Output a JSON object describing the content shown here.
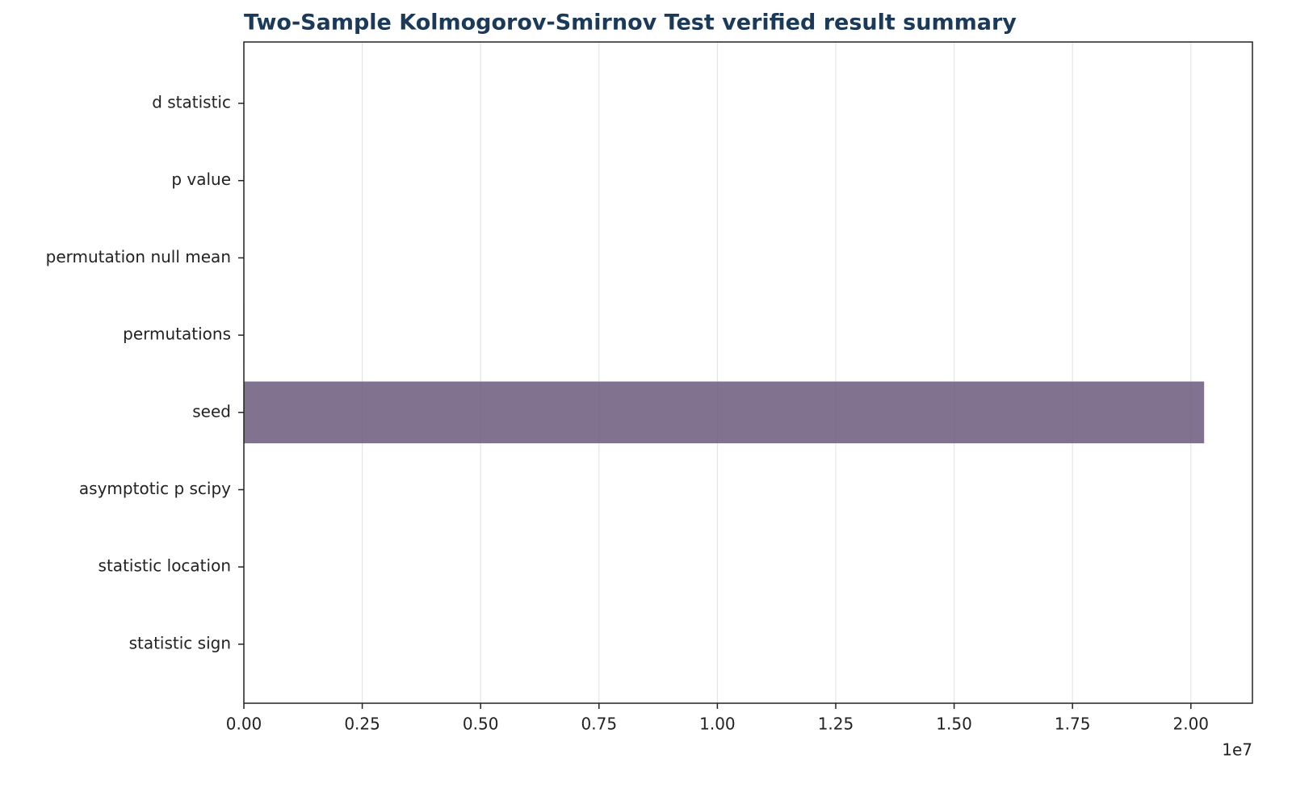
{
  "chart_data": {
    "type": "hbar",
    "title": "Two-Sample Kolmogorov-Smirnov Test verified result summary",
    "categories": [
      "d statistic",
      "p value",
      "permutation null mean",
      "permutations",
      "seed",
      "asymptotic p scipy",
      "statistic location",
      "statistic sign"
    ],
    "values": [
      0.3,
      0.01,
      0.15,
      10000,
      20280000,
      0.01,
      0.5,
      1
    ],
    "color": "#6b5b7b",
    "xlim": [
      0,
      21300000
    ],
    "xticks": [
      {
        "value": 0,
        "label": "0.00"
      },
      {
        "value": 2500000,
        "label": "0.25"
      },
      {
        "value": 5000000,
        "label": "0.50"
      },
      {
        "value": 7500000,
        "label": "0.75"
      },
      {
        "value": 10000000,
        "label": "1.00"
      },
      {
        "value": 12500000,
        "label": "1.25"
      },
      {
        "value": 15000000,
        "label": "1.50"
      },
      {
        "value": 17500000,
        "label": "1.75"
      },
      {
        "value": 20000000,
        "label": "2.00"
      }
    ],
    "x_offset_label": "1e7",
    "grid": true
  }
}
